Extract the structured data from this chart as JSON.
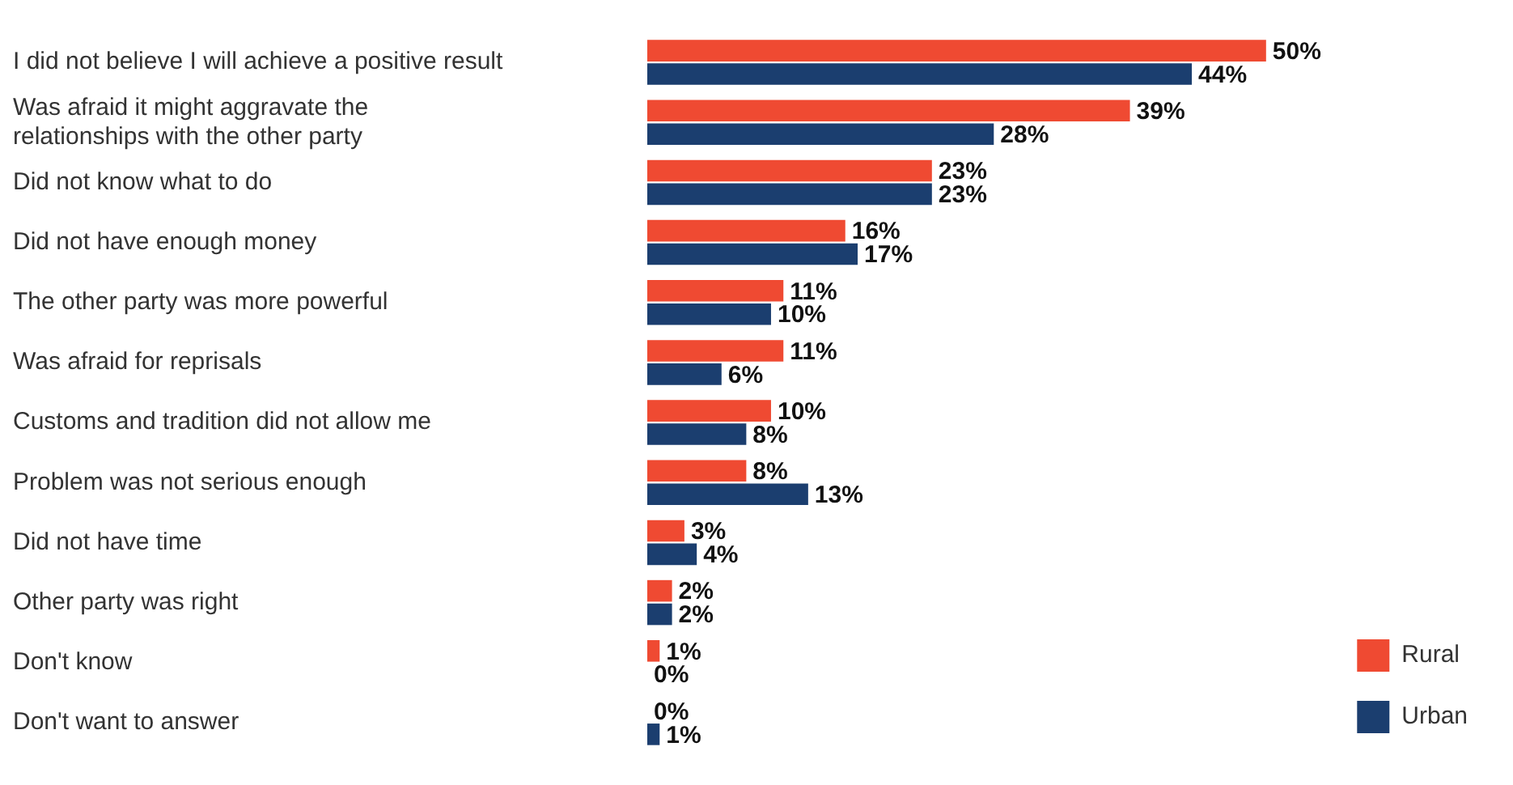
{
  "chart_data": {
    "type": "bar",
    "orientation": "horizontal",
    "legend": "bottom right",
    "categories": [
      "I did not believe I will achieve a positive result",
      "Was afraid it might aggravate the relationships with the other party",
      "Did not know what to do",
      "Did not have enough money",
      "The other party was more powerful",
      "Was afraid for reprisals",
      "Customs and tradition did not allow me",
      "Problem was not serious enough",
      "Did not have time",
      "Other party was right",
      "Don't know",
      "Don't want to answer"
    ],
    "series": [
      {
        "name": "Rural",
        "color": "#ef4a32",
        "values": [
          50,
          39,
          23,
          16,
          11,
          11,
          10,
          8,
          3,
          2,
          1,
          0
        ],
        "value_labels": [
          "50%",
          "39%",
          "23%",
          "16%",
          "11%",
          "11%",
          "10%",
          "8%",
          "3%",
          "2%",
          "1%",
          "0%"
        ]
      },
      {
        "name": "Urban",
        "color": "#1b3e6f",
        "values": [
          44,
          28,
          23,
          17,
          10,
          6,
          8,
          13,
          4,
          2,
          0,
          1
        ],
        "value_labels": [
          "44%",
          "28%",
          "23%",
          "17%",
          "10%",
          "6%",
          "8%",
          "13%",
          "4%",
          "2%",
          "0%",
          "1%"
        ]
      }
    ]
  }
}
